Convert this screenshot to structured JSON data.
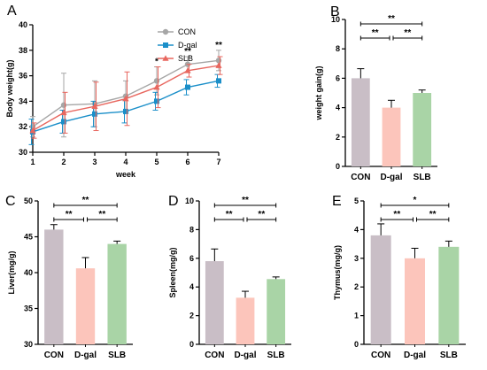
{
  "colors": {
    "CON": "#a6a6a6",
    "D-gal": "#1b8fc9",
    "SLB": "#e8675f",
    "bar_CON": "#c9bec6",
    "bar_D-gal": "#fcc5bb",
    "bar_SLB": "#a9d4a6"
  },
  "chart_data": [
    {
      "panel": "A",
      "type": "line",
      "xlabel": "week",
      "ylabel": "Body weight(g)",
      "x": [
        1,
        2,
        3,
        4,
        5,
        6,
        7
      ],
      "xlim": [
        1,
        7
      ],
      "ylim": [
        30,
        40
      ],
      "yticks": [
        30,
        32,
        34,
        36,
        38,
        40
      ],
      "legend_position": "top-right",
      "series": [
        {
          "name": "CON",
          "marker": "circle",
          "values": [
            32.0,
            33.7,
            33.8,
            34.4,
            35.6,
            36.9,
            37.2
          ],
          "errors": [
            0.8,
            2.5,
            1.8,
            1.2,
            1.1,
            0.6,
            0.8
          ]
        },
        {
          "name": "D-gal",
          "marker": "square",
          "values": [
            31.6,
            32.4,
            33.0,
            33.2,
            34.0,
            35.1,
            35.6
          ],
          "errors": [
            1.0,
            0.9,
            1.0,
            0.9,
            0.7,
            0.6,
            0.5
          ]
        },
        {
          "name": "SLB",
          "marker": "triangle",
          "values": [
            31.7,
            33.1,
            33.6,
            34.2,
            35.1,
            36.4,
            36.8
          ],
          "errors": [
            0.6,
            1.6,
            1.9,
            2.1,
            1.6,
            0.5,
            0.7
          ]
        }
      ],
      "annotations": [
        {
          "x": 5,
          "text": "*"
        },
        {
          "x": 6,
          "text": "**"
        },
        {
          "x": 7,
          "text": "**"
        }
      ]
    },
    {
      "panel": "B",
      "type": "bar",
      "categories": [
        "CON",
        "D-gal",
        "SLB"
      ],
      "values": [
        6.0,
        4.0,
        5.0
      ],
      "errors": [
        0.65,
        0.5,
        0.2
      ],
      "ylabel": "weight gain(g)",
      "ylim": [
        0,
        10
      ],
      "yticks": [
        0,
        2,
        4,
        6,
        8,
        10
      ],
      "significance": [
        {
          "from": 0,
          "to": 2,
          "text": "**"
        },
        {
          "from": 0,
          "to": 1,
          "text": "**"
        },
        {
          "from": 1,
          "to": 2,
          "text": "**"
        }
      ]
    },
    {
      "panel": "C",
      "type": "bar",
      "categories": [
        "CON",
        "D-gal",
        "SLB"
      ],
      "values": [
        46.0,
        40.6,
        44.0
      ],
      "errors": [
        0.7,
        1.5,
        0.4
      ],
      "ylabel": "Liver(mg/g)",
      "ylim": [
        30,
        50
      ],
      "yticks": [
        30,
        35,
        40,
        45,
        50
      ],
      "significance": [
        {
          "from": 0,
          "to": 2,
          "text": "**"
        },
        {
          "from": 0,
          "to": 1,
          "text": "**"
        },
        {
          "from": 1,
          "to": 2,
          "text": "**"
        }
      ]
    },
    {
      "panel": "D",
      "type": "bar",
      "categories": [
        "CON",
        "D-gal",
        "SLB"
      ],
      "values": [
        5.8,
        3.25,
        4.55
      ],
      "errors": [
        0.85,
        0.45,
        0.15
      ],
      "ylabel": "Spleen(mg/g)",
      "ylim": [
        0,
        10
      ],
      "yticks": [
        0,
        2,
        4,
        6,
        8,
        10
      ],
      "significance": [
        {
          "from": 0,
          "to": 2,
          "text": "**"
        },
        {
          "from": 0,
          "to": 1,
          "text": "**"
        },
        {
          "from": 1,
          "to": 2,
          "text": "**"
        }
      ]
    },
    {
      "panel": "E",
      "type": "bar",
      "categories": [
        "CON",
        "D-gal",
        "SLB"
      ],
      "values": [
        3.8,
        3.0,
        3.4
      ],
      "errors": [
        0.4,
        0.35,
        0.2
      ],
      "ylabel": "Thymus(mg/g)",
      "ylim": [
        0,
        5
      ],
      "yticks": [
        0,
        1,
        2,
        3,
        4,
        5
      ],
      "significance": [
        {
          "from": 0,
          "to": 2,
          "text": "*"
        },
        {
          "from": 0,
          "to": 1,
          "text": "**"
        },
        {
          "from": 1,
          "to": 2,
          "text": "**"
        }
      ]
    }
  ]
}
